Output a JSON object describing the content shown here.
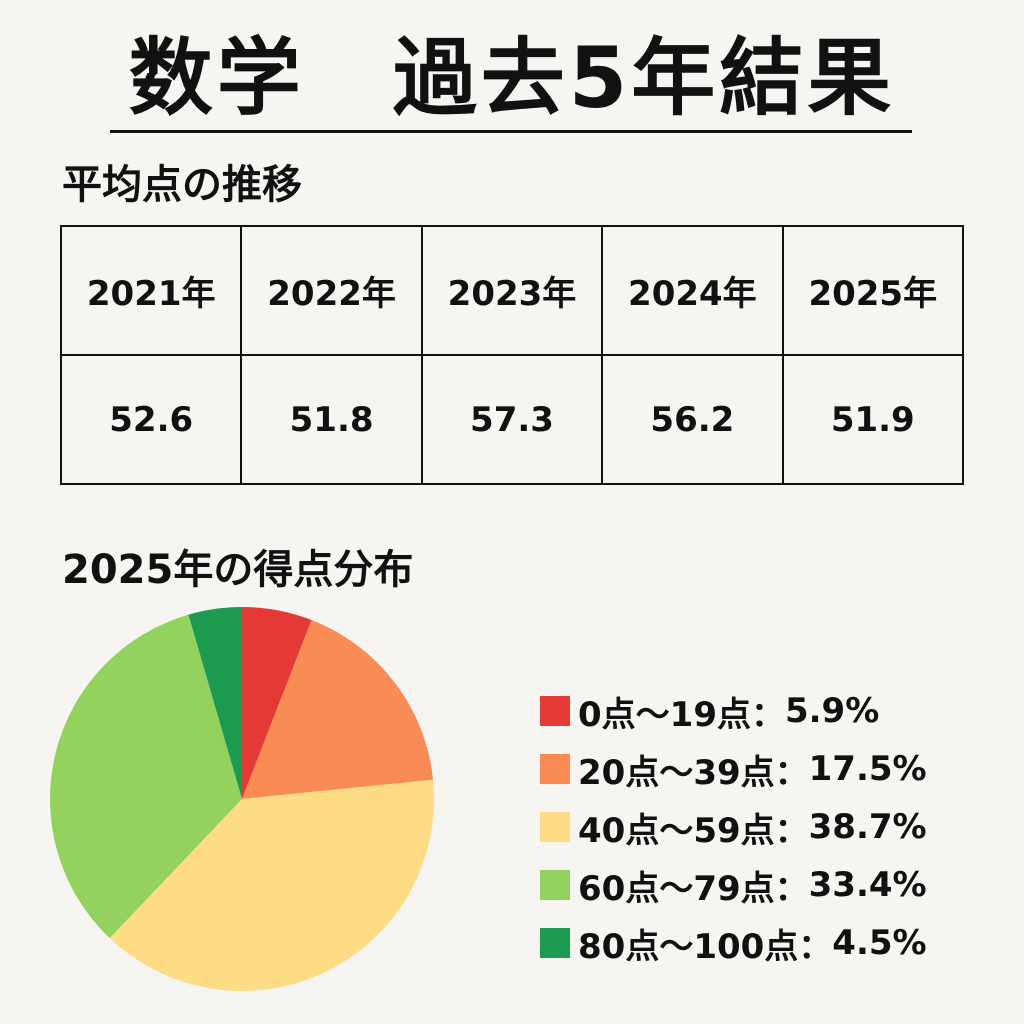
{
  "header": {
    "title": "数学　過去5年結果"
  },
  "avg_section": {
    "heading": "平均点の推移",
    "years": [
      "2021年",
      "2022年",
      "2023年",
      "2024年",
      "2025年"
    ],
    "scores": [
      "52.6",
      "51.8",
      "57.3",
      "56.2",
      "51.9"
    ]
  },
  "dist_section": {
    "heading": "2025年の得点分布"
  },
  "chart_data": {
    "type": "pie",
    "title": "2025年の得点分布",
    "slices": [
      {
        "label": "0点〜19点",
        "value": 5.9,
        "display": "5.9%",
        "color": "#e53935"
      },
      {
        "label": "20点〜39点",
        "value": 17.5,
        "display": "17.5%",
        "color": "#f98b55"
      },
      {
        "label": "40点〜59点",
        "value": 38.7,
        "display": "38.7%",
        "color": "#fddc85"
      },
      {
        "label": "60点〜79点",
        "value": 33.4,
        "display": "33.4%",
        "color": "#93d25e"
      },
      {
        "label": "80点〜100点",
        "value": 4.5,
        "display": "4.5%",
        "color": "#1c9a50"
      }
    ],
    "legend_position": "right",
    "start_angle_deg": 0,
    "direction": "clockwise"
  }
}
